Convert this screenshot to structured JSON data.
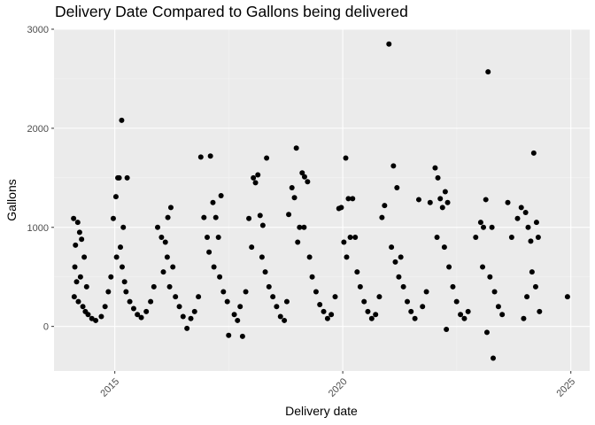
{
  "chart_data": {
    "type": "scatter",
    "title": "Delivery Date Compared to Gallons being delivered",
    "xlabel": "Delivery date",
    "ylabel": "Gallons",
    "x_is_date": true,
    "xlim": [
      "2013-09-01",
      "2025-06-01"
    ],
    "ylim": [
      -450,
      3000
    ],
    "x_ticks": [
      {
        "value": "2015-01-01",
        "label": "2015"
      },
      {
        "value": "2020-01-01",
        "label": "2020"
      },
      {
        "value": "2025-01-01",
        "label": "2025"
      }
    ],
    "y_ticks": [
      {
        "value": 0,
        "label": "0"
      },
      {
        "value": 1000,
        "label": "1000"
      },
      {
        "value": 2000,
        "label": "2000"
      },
      {
        "value": 3000,
        "label": "3000"
      }
    ],
    "grid": true,
    "legend": "none",
    "point_color": "#000000",
    "panel_color": "#ebebeb",
    "series": [
      {
        "points": [
          {
            "x": "2014-02-05",
            "y": 1090
          },
          {
            "x": "2014-02-20",
            "y": 820
          },
          {
            "x": "2014-03-10",
            "y": 1050
          },
          {
            "x": "2014-03-25",
            "y": 950
          },
          {
            "x": "2014-04-10",
            "y": 880
          },
          {
            "x": "2014-05-01",
            "y": 700
          },
          {
            "x": "2014-02-15",
            "y": 600
          },
          {
            "x": "2014-03-01",
            "y": 450
          },
          {
            "x": "2014-04-01",
            "y": 500
          },
          {
            "x": "2014-05-20",
            "y": 400
          },
          {
            "x": "2014-02-10",
            "y": 300
          },
          {
            "x": "2014-03-15",
            "y": 250
          },
          {
            "x": "2014-04-20",
            "y": 200
          },
          {
            "x": "2014-05-10",
            "y": 150
          },
          {
            "x": "2014-06-01",
            "y": 120
          },
          {
            "x": "2014-07-01",
            "y": 80
          },
          {
            "x": "2014-08-01",
            "y": 60
          },
          {
            "x": "2014-09-15",
            "y": 100
          },
          {
            "x": "2014-10-15",
            "y": 200
          },
          {
            "x": "2014-11-10",
            "y": 350
          },
          {
            "x": "2014-12-01",
            "y": 500
          },
          {
            "x": "2014-12-20",
            "y": 1090
          },
          {
            "x": "2015-01-10",
            "y": 1310
          },
          {
            "x": "2015-01-25",
            "y": 1500
          },
          {
            "x": "2015-02-05",
            "y": 1500
          },
          {
            "x": "2015-02-25",
            "y": 2080
          },
          {
            "x": "2015-03-10",
            "y": 1000
          },
          {
            "x": "2015-04-10",
            "y": 1500
          },
          {
            "x": "2015-02-15",
            "y": 800
          },
          {
            "x": "2015-03-01",
            "y": 600
          },
          {
            "x": "2015-01-15",
            "y": 700
          },
          {
            "x": "2015-03-20",
            "y": 450
          },
          {
            "x": "2015-04-01",
            "y": 350
          },
          {
            "x": "2015-05-01",
            "y": 250
          },
          {
            "x": "2015-06-01",
            "y": 180
          },
          {
            "x": "2015-07-01",
            "y": 120
          },
          {
            "x": "2015-08-01",
            "y": 90
          },
          {
            "x": "2015-09-10",
            "y": 150
          },
          {
            "x": "2015-10-15",
            "y": 250
          },
          {
            "x": "2015-11-10",
            "y": 400
          },
          {
            "x": "2015-12-10",
            "y": 1000
          },
          {
            "x": "2016-01-10",
            "y": 900
          },
          {
            "x": "2016-02-10",
            "y": 850
          },
          {
            "x": "2016-03-01",
            "y": 1100
          },
          {
            "x": "2016-03-25",
            "y": 1200
          },
          {
            "x": "2016-02-25",
            "y": 700
          },
          {
            "x": "2016-01-25",
            "y": 550
          },
          {
            "x": "2016-04-10",
            "y": 600
          },
          {
            "x": "2016-03-15",
            "y": 400
          },
          {
            "x": "2016-05-01",
            "y": 300
          },
          {
            "x": "2016-06-01",
            "y": 200
          },
          {
            "x": "2016-07-01",
            "y": 100
          },
          {
            "x": "2016-08-01",
            "y": -20
          },
          {
            "x": "2016-09-01",
            "y": 80
          },
          {
            "x": "2016-10-01",
            "y": 150
          },
          {
            "x": "2016-11-01",
            "y": 300
          },
          {
            "x": "2016-11-20",
            "y": 1710
          },
          {
            "x": "2016-12-15",
            "y": 1100
          },
          {
            "x": "2017-01-10",
            "y": 900
          },
          {
            "x": "2017-02-05",
            "y": 1720
          },
          {
            "x": "2017-02-25",
            "y": 1250
          },
          {
            "x": "2017-03-20",
            "y": 1100
          },
          {
            "x": "2017-04-10",
            "y": 900
          },
          {
            "x": "2017-05-01",
            "y": 1320
          },
          {
            "x": "2017-01-25",
            "y": 750
          },
          {
            "x": "2017-03-05",
            "y": 600
          },
          {
            "x": "2017-04-20",
            "y": 500
          },
          {
            "x": "2017-05-20",
            "y": 350
          },
          {
            "x": "2017-06-20",
            "y": 250
          },
          {
            "x": "2017-07-01",
            "y": -90
          },
          {
            "x": "2017-08-15",
            "y": 120
          },
          {
            "x": "2017-09-10",
            "y": 60
          },
          {
            "x": "2017-10-01",
            "y": 200
          },
          {
            "x": "2017-10-20",
            "y": -100
          },
          {
            "x": "2017-11-15",
            "y": 350
          },
          {
            "x": "2017-12-10",
            "y": 1090
          },
          {
            "x": "2018-01-15",
            "y": 1500
          },
          {
            "x": "2018-02-01",
            "y": 1450
          },
          {
            "x": "2018-02-20",
            "y": 1530
          },
          {
            "x": "2018-03-10",
            "y": 1120
          },
          {
            "x": "2018-04-01",
            "y": 1020
          },
          {
            "x": "2018-05-01",
            "y": 1700
          },
          {
            "x": "2018-01-01",
            "y": 800
          },
          {
            "x": "2018-03-25",
            "y": 700
          },
          {
            "x": "2018-04-20",
            "y": 550
          },
          {
            "x": "2018-05-20",
            "y": 400
          },
          {
            "x": "2018-06-20",
            "y": 300
          },
          {
            "x": "2018-07-20",
            "y": 200
          },
          {
            "x": "2018-08-20",
            "y": 100
          },
          {
            "x": "2018-09-20",
            "y": 60
          },
          {
            "x": "2018-10-10",
            "y": 250
          },
          {
            "x": "2018-10-25",
            "y": 1130
          },
          {
            "x": "2018-11-20",
            "y": 1400
          },
          {
            "x": "2018-12-10",
            "y": 1300
          },
          {
            "x": "2018-12-25",
            "y": 1800
          },
          {
            "x": "2019-01-20",
            "y": 1000
          },
          {
            "x": "2019-02-10",
            "y": 1550
          },
          {
            "x": "2019-03-01",
            "y": 1510
          },
          {
            "x": "2019-03-25",
            "y": 1460
          },
          {
            "x": "2019-02-25",
            "y": 1000
          },
          {
            "x": "2019-01-05",
            "y": 850
          },
          {
            "x": "2019-04-10",
            "y": 700
          },
          {
            "x": "2019-05-01",
            "y": 500
          },
          {
            "x": "2019-06-01",
            "y": 350
          },
          {
            "x": "2019-07-01",
            "y": 220
          },
          {
            "x": "2019-08-01",
            "y": 150
          },
          {
            "x": "2019-09-01",
            "y": 80
          },
          {
            "x": "2019-10-01",
            "y": 120
          },
          {
            "x": "2019-11-01",
            "y": 300
          },
          {
            "x": "2019-12-01",
            "y": 1190
          },
          {
            "x": "2019-12-20",
            "y": 1200
          },
          {
            "x": "2020-01-10",
            "y": 850
          },
          {
            "x": "2020-01-25",
            "y": 1700
          },
          {
            "x": "2020-02-15",
            "y": 1290
          },
          {
            "x": "2020-03-20",
            "y": 1290
          },
          {
            "x": "2020-03-01",
            "y": 900
          },
          {
            "x": "2020-04-10",
            "y": 900
          },
          {
            "x": "2020-02-01",
            "y": 700
          },
          {
            "x": "2020-04-25",
            "y": 550
          },
          {
            "x": "2020-05-20",
            "y": 400
          },
          {
            "x": "2020-06-20",
            "y": 250
          },
          {
            "x": "2020-07-20",
            "y": 150
          },
          {
            "x": "2020-08-20",
            "y": 80
          },
          {
            "x": "2020-09-20",
            "y": 120
          },
          {
            "x": "2020-10-20",
            "y": 300
          },
          {
            "x": "2020-11-10",
            "y": 1100
          },
          {
            "x": "2020-12-01",
            "y": 1220
          },
          {
            "x": "2021-01-05",
            "y": 2850
          },
          {
            "x": "2021-02-10",
            "y": 1620
          },
          {
            "x": "2021-03-10",
            "y": 1400
          },
          {
            "x": "2021-04-10",
            "y": 700
          },
          {
            "x": "2021-01-25",
            "y": 800
          },
          {
            "x": "2021-02-25",
            "y": 650
          },
          {
            "x": "2021-03-25",
            "y": 500
          },
          {
            "x": "2021-05-01",
            "y": 400
          },
          {
            "x": "2021-06-01",
            "y": 250
          },
          {
            "x": "2021-07-01",
            "y": 150
          },
          {
            "x": "2021-08-01",
            "y": 80
          },
          {
            "x": "2021-09-01",
            "y": 1280
          },
          {
            "x": "2021-10-01",
            "y": 200
          },
          {
            "x": "2021-11-01",
            "y": 350
          },
          {
            "x": "2021-12-01",
            "y": 1250
          },
          {
            "x": "2022-01-10",
            "y": 1600
          },
          {
            "x": "2022-02-01",
            "y": 1500
          },
          {
            "x": "2022-02-20",
            "y": 1290
          },
          {
            "x": "2022-03-10",
            "y": 1200
          },
          {
            "x": "2022-04-01",
            "y": 1360
          },
          {
            "x": "2022-04-20",
            "y": 1250
          },
          {
            "x": "2022-01-25",
            "y": 900
          },
          {
            "x": "2022-03-25",
            "y": 800
          },
          {
            "x": "2022-05-01",
            "y": 600
          },
          {
            "x": "2022-06-01",
            "y": 400
          },
          {
            "x": "2022-07-01",
            "y": 250
          },
          {
            "x": "2022-08-01",
            "y": 120
          },
          {
            "x": "2022-09-01",
            "y": 80
          },
          {
            "x": "2022-10-01",
            "y": 150
          },
          {
            "x": "2022-04-10",
            "y": -30
          },
          {
            "x": "2022-12-01",
            "y": 900
          },
          {
            "x": "2023-01-10",
            "y": 1050
          },
          {
            "x": "2023-02-01",
            "y": 1000
          },
          {
            "x": "2023-02-20",
            "y": 1280
          },
          {
            "x": "2023-03-10",
            "y": 2570
          },
          {
            "x": "2023-04-10",
            "y": 1000
          },
          {
            "x": "2023-01-25",
            "y": 600
          },
          {
            "x": "2023-03-25",
            "y": 500
          },
          {
            "x": "2023-05-01",
            "y": 350
          },
          {
            "x": "2023-06-01",
            "y": 200
          },
          {
            "x": "2023-07-01",
            "y": 120
          },
          {
            "x": "2023-04-20",
            "y": -320
          },
          {
            "x": "2023-03-01",
            "y": -60
          },
          {
            "x": "2023-08-15",
            "y": 1250
          },
          {
            "x": "2023-09-15",
            "y": 900
          },
          {
            "x": "2023-11-01",
            "y": 1090
          },
          {
            "x": "2023-12-01",
            "y": 1200
          },
          {
            "x": "2024-01-05",
            "y": 1150
          },
          {
            "x": "2024-01-25",
            "y": 1000
          },
          {
            "x": "2024-02-15",
            "y": 860
          },
          {
            "x": "2024-03-10",
            "y": 1750
          },
          {
            "x": "2024-04-01",
            "y": 1050
          },
          {
            "x": "2024-04-15",
            "y": 900
          },
          {
            "x": "2024-02-25",
            "y": 550
          },
          {
            "x": "2024-03-25",
            "y": 400
          },
          {
            "x": "2024-01-15",
            "y": 300
          },
          {
            "x": "2024-04-25",
            "y": 150
          },
          {
            "x": "2023-12-20",
            "y": 80
          },
          {
            "x": "2024-12-05",
            "y": 300
          }
        ]
      }
    ]
  }
}
